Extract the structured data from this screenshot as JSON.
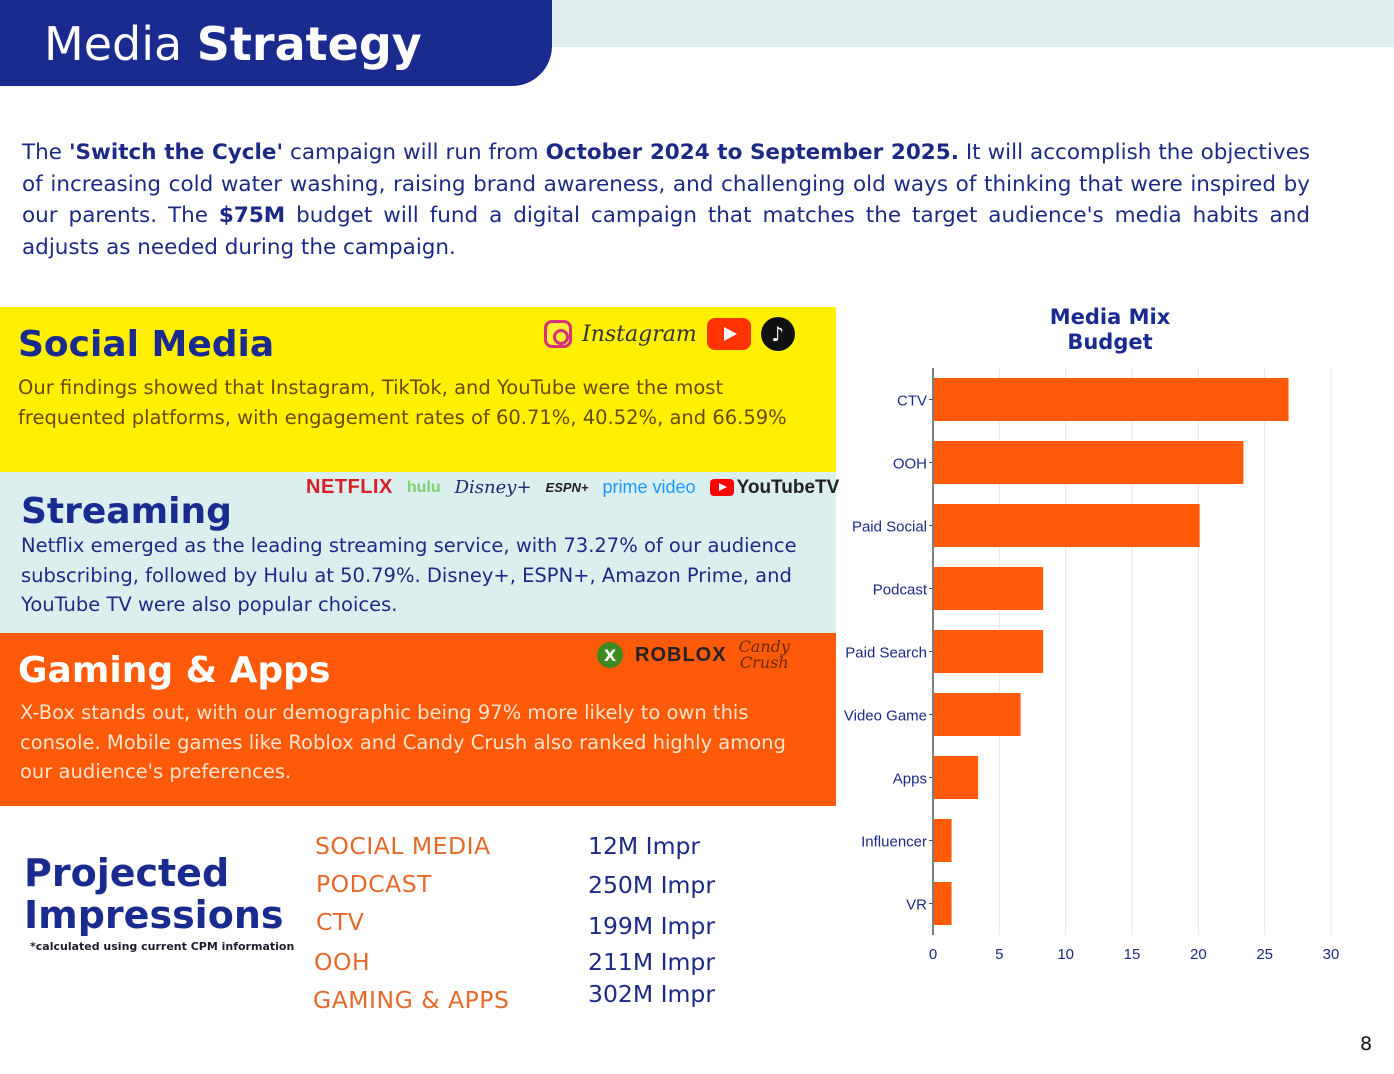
{
  "header": {
    "title_light": "Media ",
    "title_bold": "Strategy"
  },
  "intro": {
    "t1": "The ",
    "b1": "'Switch the Cycle'",
    "t2": " campaign will run from ",
    "b2": "October 2024 to September 2025.",
    "t3": " It will accomplish the objectives of increasing cold water washing, raising brand awareness, and challenging old ways of thinking that were inspired by our parents. The ",
    "b3": "$75M",
    "t4": " budget will fund a digital campaign that matches the target audience's media habits and adjusts as needed during the campaign."
  },
  "social": {
    "heading": "Social Media",
    "body": "Our findings showed that Instagram, TikTok, and YouTube were the most frequented platforms, with engagement rates of 60.71%, 40.52%, and 66.59%",
    "logos": {
      "instagram": "Instagram",
      "tiktok": "♪"
    }
  },
  "streaming": {
    "heading": "Streaming",
    "body": "Netflix emerged as the leading streaming service, with 73.27% of our audience subscribing, followed by Hulu at 50.79%. Disney+, ESPN+, Amazon Prime, and YouTube TV were also popular choices.",
    "logos": {
      "netflix": "NETFLIX",
      "hulu": "hulu",
      "disney": "Disney+",
      "espn": "ESPN+",
      "prime": "prime video",
      "youtubetv": "YouTubeTV"
    }
  },
  "gaming": {
    "heading": "Gaming & Apps",
    "body": "X-Box stands out, with our demographic being 97% more likely to own this console. Mobile games like Roblox and Candy Crush also ranked highly among our audience's preferences.",
    "logos": {
      "xbox": "X",
      "roblox": "ROBLOX",
      "candy1": "Candy",
      "candy2": "Crush"
    }
  },
  "impressions": {
    "title_line1": "Projected",
    "title_line2": "Impressions",
    "note": "*calculated using current CPM information",
    "rows": [
      {
        "label": "SOCIAL MEDIA",
        "value": "12M Impr"
      },
      {
        "label": "PODCAST",
        "value": "250M Impr"
      },
      {
        "label": "CTV",
        "value": "199M Impr"
      },
      {
        "label": "OOH",
        "value": "211M Impr"
      },
      {
        "label": "GAMING & APPS",
        "value": "302M Impr"
      }
    ]
  },
  "chart_title_line1": "Media Mix",
  "chart_title_line2": "Budget",
  "chart_data": {
    "type": "bar",
    "orientation": "horizontal",
    "title": "Media Mix Budget",
    "categories": [
      "CTV",
      "OOH",
      "Paid Social",
      "Podcast",
      "Paid Search",
      "Video Game",
      "Apps",
      "Influencer",
      "VR"
    ],
    "values": [
      26.8,
      23.4,
      20.1,
      8.3,
      8.3,
      6.6,
      3.4,
      1.4,
      1.4
    ],
    "xlim": [
      0,
      30
    ],
    "xticks": [
      0,
      5,
      10,
      15,
      20,
      25,
      30
    ],
    "grid": true,
    "bar_color": "#ff5a0a"
  },
  "page_number": "8"
}
